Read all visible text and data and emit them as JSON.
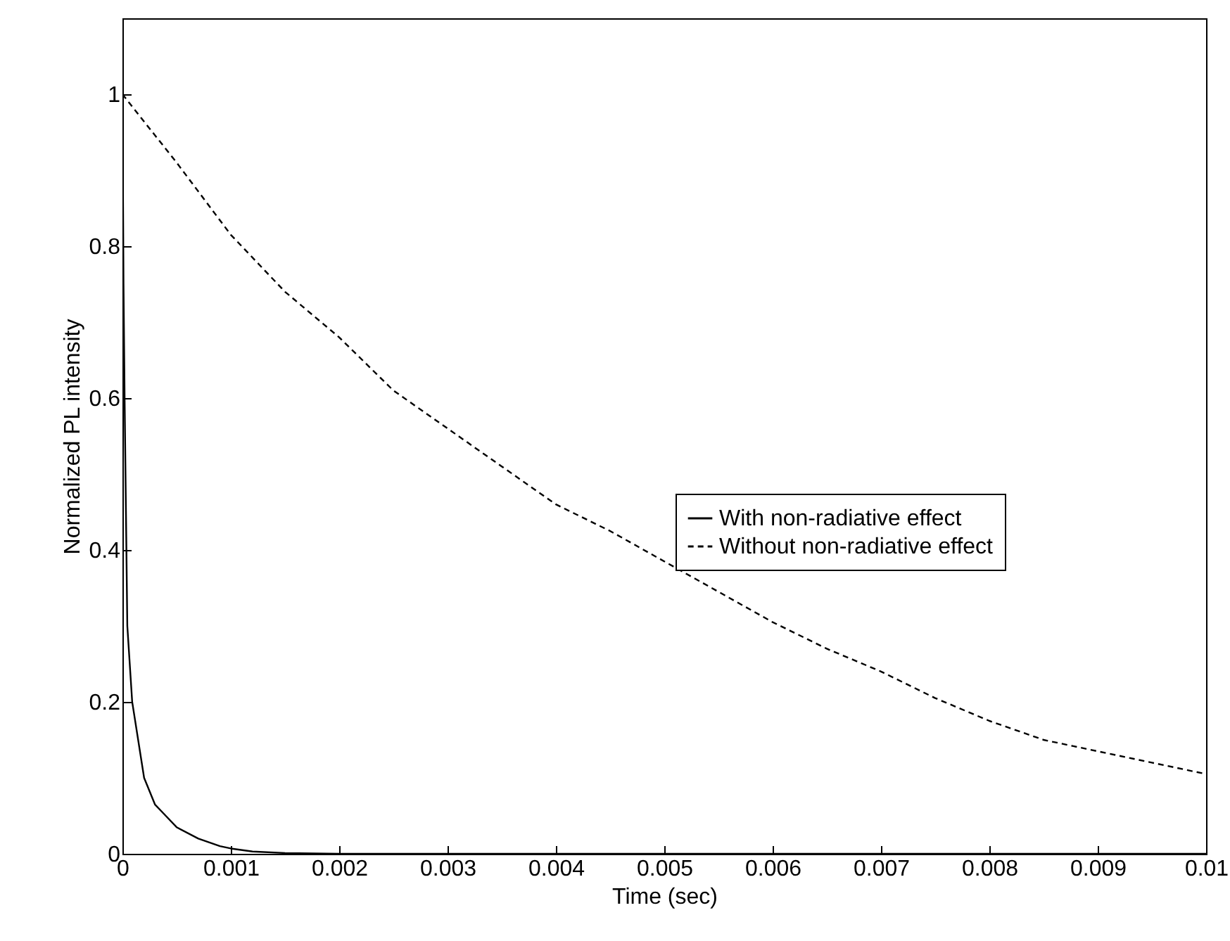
{
  "chart_data": {
    "type": "line",
    "xlabel": "Time (sec)",
    "ylabel": "Normalized PL intensity",
    "xlim": [
      0,
      0.01
    ],
    "xticks": [
      0,
      0.001,
      0.002,
      0.003,
      0.004,
      0.005,
      0.006,
      0.007,
      0.008,
      0.009,
      0.01
    ],
    "ylim": [
      0,
      1.1
    ],
    "yticks": [
      0,
      0.2,
      0.4,
      0.6,
      0.8,
      1
    ],
    "grid": false,
    "legend": "right",
    "marker": "none",
    "series": [
      {
        "name": "With non-radiative effect",
        "color": "#000000",
        "line_style": "solid",
        "x": [
          0,
          1e-05,
          2e-05,
          4.5e-05,
          9e-05,
          0.0002,
          0.0003,
          0.0004,
          0.0005,
          0.0007,
          0.0009,
          0.001,
          0.0012,
          0.0015,
          0.002,
          0.003,
          0.004,
          0.005,
          0.006,
          0.007,
          0.008,
          0.009,
          0.01
        ],
        "values": [
          1,
          0.75,
          0.6,
          0.3,
          0.2,
          0.1,
          0.065,
          0.05,
          0.035,
          0.02,
          0.01,
          0.007,
          0.003,
          0.001,
          0,
          0,
          0,
          0,
          0,
          0,
          0,
          0,
          0
        ]
      },
      {
        "name": "Without non-radiative effect",
        "color": "#000000",
        "line_style": "dashed",
        "x": [
          0,
          0.0005,
          0.001,
          0.0015,
          0.002,
          0.0025,
          0.003,
          0.0035,
          0.004,
          0.0045,
          0.005,
          0.0055,
          0.006,
          0.0065,
          0.007,
          0.0075,
          0.008,
          0.0085,
          0.009,
          0.0095,
          0.01
        ],
        "values": [
          1,
          0.91,
          0.815,
          0.74,
          0.68,
          0.61,
          0.56,
          0.51,
          0.46,
          0.425,
          0.385,
          0.345,
          0.305,
          0.27,
          0.24,
          0.205,
          0.175,
          0.15,
          0.135,
          0.12,
          0.105
        ]
      }
    ]
  }
}
